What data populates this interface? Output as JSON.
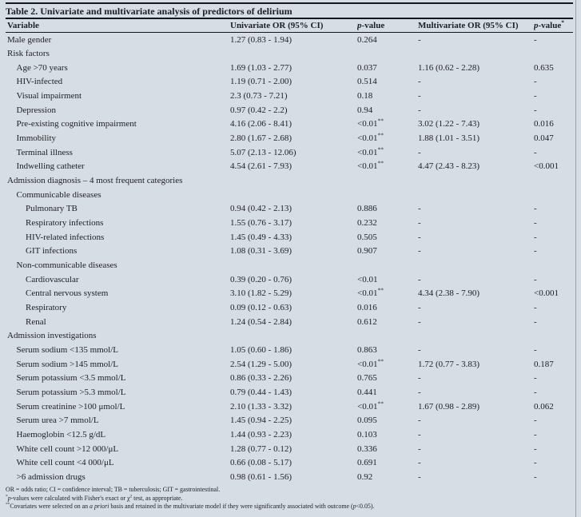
{
  "colors": {
    "background": "#d7dde4",
    "text": "#1c1f25",
    "rule": "#15171b",
    "page_divider": "#97a0ab"
  },
  "table": {
    "title": "Table 2. Univariate and multivariate analysis of predictors of delirium",
    "header": {
      "variable": "Variable",
      "univariate": "Univariate OR  (95% CI)",
      "p1_italic": "p",
      "p1_rest": "-value",
      "p1_sup": "",
      "multivariate": "Multivariate OR (95% CI)",
      "p2_italic": "p",
      "p2_rest": "-value",
      "p2_sup": "*"
    },
    "rows": [
      {
        "label": "Male gender",
        "indent": 0,
        "uni": "1.27 (0.83 - 1.94)",
        "p_uni": "0.264",
        "p_uni_sup": "",
        "multi": "-",
        "p_multi": "-"
      },
      {
        "label": "Risk factors",
        "indent": 0,
        "uni": "",
        "p_uni": "",
        "p_uni_sup": "",
        "multi": "",
        "p_multi": ""
      },
      {
        "label": "Age >70 years",
        "indent": 1,
        "uni": "1.69 (1.03 - 2.77)",
        "p_uni": "0.037",
        "p_uni_sup": "",
        "multi": "1.16 (0.62 - 2.28)",
        "p_multi": "0.635"
      },
      {
        "label": "HIV-infected",
        "indent": 1,
        "uni": "1.19 (0.71 - 2.00)",
        "p_uni": "0.514",
        "p_uni_sup": "",
        "multi": "-",
        "p_multi": "-"
      },
      {
        "label": "Visual impairment",
        "indent": 1,
        "uni": "2.3 (0.73 - 7.21)",
        "p_uni": "0.18",
        "p_uni_sup": "",
        "multi": "-",
        "p_multi": "-"
      },
      {
        "label": "Depression",
        "indent": 1,
        "uni": "0.97 (0.42 - 2.2)",
        "p_uni": "0.94",
        "p_uni_sup": "",
        "multi": "-",
        "p_multi": "-"
      },
      {
        "label": "Pre-existing cognitive impairment",
        "indent": 1,
        "uni": "4.16 (2.06 - 8.41)",
        "p_uni": "<0.01",
        "p_uni_sup": "**",
        "multi": "3.02 (1.22 - 7.43)",
        "p_multi": "0.016"
      },
      {
        "label": "Immobility",
        "indent": 1,
        "uni": "2.80 (1.67 - 2.68)",
        "p_uni": "<0.01",
        "p_uni_sup": "**",
        "multi": "1.88 (1.01 - 3.51)",
        "p_multi": "0.047"
      },
      {
        "label": "Terminal illness",
        "indent": 1,
        "uni": "5.07 (2.13 - 12.06)",
        "p_uni": "<0.01",
        "p_uni_sup": "**",
        "multi": "-",
        "p_multi": "-"
      },
      {
        "label": "Indwelling catheter",
        "indent": 1,
        "uni": "4.54 (2.61 - 7.93)",
        "p_uni": "<0.01",
        "p_uni_sup": "**",
        "multi": "4.47 (2.43 - 8.23)",
        "p_multi": "<0.001"
      },
      {
        "label": "Admission diagnosis – 4 most frequent categories",
        "indent": 0,
        "uni": "",
        "p_uni": "",
        "p_uni_sup": "",
        "multi": "",
        "p_multi": ""
      },
      {
        "label": "Communicable diseases",
        "indent": 1,
        "uni": "",
        "p_uni": "",
        "p_uni_sup": "",
        "multi": "",
        "p_multi": ""
      },
      {
        "label": "Pulmonary TB",
        "indent": 2,
        "uni": "0.94 (0.42 - 2.13)",
        "p_uni": "0.886",
        "p_uni_sup": "",
        "multi": "-",
        "p_multi": "-"
      },
      {
        "label": "Respiratory infections",
        "indent": 2,
        "uni": "1.55 (0.76 - 3.17)",
        "p_uni": "0.232",
        "p_uni_sup": "",
        "multi": "-",
        "p_multi": "-"
      },
      {
        "label": "HIV-related infections",
        "indent": 2,
        "uni": "1.45 (0.49 - 4.33)",
        "p_uni": "0.505",
        "p_uni_sup": "",
        "multi": "-",
        "p_multi": "-"
      },
      {
        "label": "GIT infections",
        "indent": 2,
        "uni": "1.08 (0.31 - 3.69)",
        "p_uni": "0.907",
        "p_uni_sup": "",
        "multi": "-",
        "p_multi": "-"
      },
      {
        "label": "Non-communicable diseases",
        "indent": 1,
        "uni": "",
        "p_uni": "",
        "p_uni_sup": "",
        "multi": "",
        "p_multi": ""
      },
      {
        "label": "Cardiovascular",
        "indent": 2,
        "uni": "0.39 (0.20 - 0.76)",
        "p_uni": "<0.01",
        "p_uni_sup": "",
        "multi": "-",
        "p_multi": "-"
      },
      {
        "label": "Central nervous system",
        "indent": 2,
        "uni": "3.10 (1.82 - 5.29)",
        "p_uni": "<0.01",
        "p_uni_sup": "**",
        "multi": "4.34 (2.38 - 7.90)",
        "p_multi": "<0.001"
      },
      {
        "label": "Respiratory",
        "indent": 2,
        "uni": "0.09 (0.12 - 0.63)",
        "p_uni": "0.016",
        "p_uni_sup": "",
        "multi": "-",
        "p_multi": "-"
      },
      {
        "label": "Renal",
        "indent": 2,
        "uni": "1.24 (0.54 - 2.84)",
        "p_uni": "0.612",
        "p_uni_sup": "",
        "multi": "-",
        "p_multi": "-"
      },
      {
        "label": "Admission investigations",
        "indent": 0,
        "uni": "",
        "p_uni": "",
        "p_uni_sup": "",
        "multi": "",
        "p_multi": ""
      },
      {
        "label": "Serum sodium <135 mmol/L",
        "indent": 1,
        "uni": "1.05 (0.60 - 1.86)",
        "p_uni": "0.863",
        "p_uni_sup": "",
        "multi": "-",
        "p_multi": "-"
      },
      {
        "label": "Serum sodium >145 mmol/L",
        "indent": 1,
        "uni": "2.54 (1.29 - 5.00)",
        "p_uni": "<0.01",
        "p_uni_sup": "**",
        "multi": "1.72 (0.77 - 3.83)",
        "p_multi": "0.187"
      },
      {
        "label": "Serum potassium <3.5 mmol/L",
        "indent": 1,
        "uni": "0.86 (0.33 - 2.26)",
        "p_uni": "0.765",
        "p_uni_sup": "",
        "multi": "-",
        "p_multi": "-"
      },
      {
        "label": "Serum potassium >5.3 mmol/L",
        "indent": 1,
        "uni": "0.79 (0.44 - 1.43)",
        "p_uni": "0.441",
        "p_uni_sup": "",
        "multi": "-",
        "p_multi": "-"
      },
      {
        "label": "Serum creatinine >100 μmol/L",
        "indent": 1,
        "uni": "2.10 (1.33 - 3.32)",
        "p_uni": "<0.01",
        "p_uni_sup": "**",
        "multi": "1.67 (0.98 - 2.89)",
        "p_multi": "0.062"
      },
      {
        "label": "Serum urea >7 mmol/L",
        "indent": 1,
        "uni": "1.45 (0.94 - 2.25)",
        "p_uni": "0.095",
        "p_uni_sup": "",
        "multi": "-",
        "p_multi": "-"
      },
      {
        "label": "Haemoglobin <12.5 g/dL",
        "indent": 1,
        "uni": "1.44 (0.93 - 2.23)",
        "p_uni": "0.103",
        "p_uni_sup": "",
        "multi": "-",
        "p_multi": "-"
      },
      {
        "label": "White cell count >12 000/μL",
        "indent": 1,
        "uni": "1.28 (0.77 - 0.12)",
        "p_uni": "0.336",
        "p_uni_sup": "",
        "multi": "-",
        "p_multi": "-"
      },
      {
        "label": "White cell count <4 000/μL",
        "indent": 1,
        "uni": "0.66 (0.08 - 5.17)",
        "p_uni": "0.691",
        "p_uni_sup": "",
        "multi": "-",
        "p_multi": "-"
      },
      {
        "label": ">6 admission drugs",
        "indent": 1,
        "uni": "0.98 (0.61 - 1.56)",
        "p_uni": "0.92",
        "p_uni_sup": "",
        "multi": "-",
        "p_multi": "-"
      }
    ],
    "footnotes": {
      "line1": "OR = odds ratio; CI = confidence interval; TB = tuberculosis; GIT = gastrointestinal.",
      "line2": {
        "marker": "*",
        "p_italic": "p",
        "text_a": "-values were calculated with Fisher's exact or χ",
        "sup": "2",
        "text_b": " test, as appropriate."
      },
      "line3": {
        "marker": "**",
        "text_a": "Covariates were selected on an ",
        "italic": "a priori",
        "text_b": " basis and retained in the multivariate model if they were significantly associated with outcome (",
        "p_italic": "p",
        "text_c": "<0.05)."
      }
    }
  }
}
